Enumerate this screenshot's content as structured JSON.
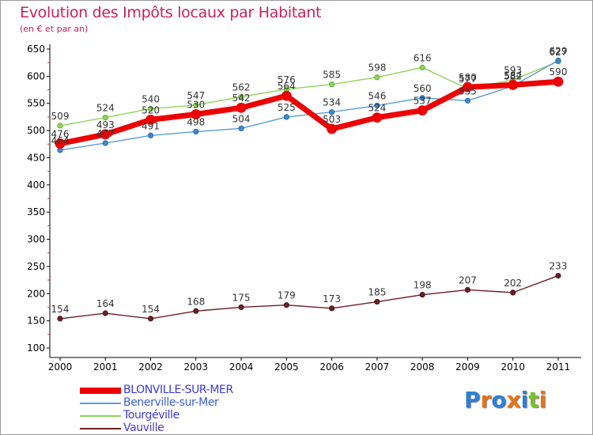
{
  "header": {
    "title": "Evolution des Impôts locaux par Habitant",
    "subtitle": "(en € et par an)"
  },
  "brand": {
    "text": "Proxiti",
    "letters": [
      "P",
      "r",
      "o",
      "x",
      "i",
      "t",
      "i"
    ],
    "colors": [
      "#2f7fd6",
      "#e8731a",
      "#2f7fd6",
      "#e8731a",
      "#2f7fd6",
      "#7bbf2a",
      "#e8731a"
    ]
  },
  "chart_data": {
    "type": "line",
    "title": "Evolution des Impôts locaux par Habitant",
    "subtitle": "(en € et par an)",
    "xlabel": "",
    "ylabel": "",
    "x": [
      "2000",
      "2001",
      "2002",
      "2003",
      "2004",
      "2005",
      "2006",
      "2007",
      "2008",
      "2009",
      "2010",
      "2011"
    ],
    "ylim": [
      100,
      650
    ],
    "yticks": [
      100,
      150,
      200,
      250,
      300,
      350,
      400,
      450,
      500,
      550,
      600,
      650
    ],
    "grid": false,
    "legend": "bottom-left",
    "series": [
      {
        "name": "BLONVILLE-SUR-MER",
        "color": "#ee0000",
        "values": [
          476,
          493,
          520,
          530,
          542,
          564,
          503,
          524,
          537,
          580,
          584,
          590
        ]
      },
      {
        "name": "Benerville-sur-Mer",
        "color": "#5b9bd5",
        "values": [
          464,
          477,
          491,
          498,
          504,
          525,
          534,
          546,
          560,
          555,
          582,
          629
        ]
      },
      {
        "name": "Tourgéville",
        "color": "#8fd45a",
        "values": [
          509,
          524,
          540,
          547,
          562,
          576,
          585,
          598,
          616,
          577,
          593,
          627
        ]
      },
      {
        "name": "Vauville",
        "color": "#6b1f24",
        "values": [
          154,
          164,
          154,
          168,
          175,
          179,
          173,
          185,
          198,
          207,
          202,
          233
        ]
      }
    ]
  }
}
